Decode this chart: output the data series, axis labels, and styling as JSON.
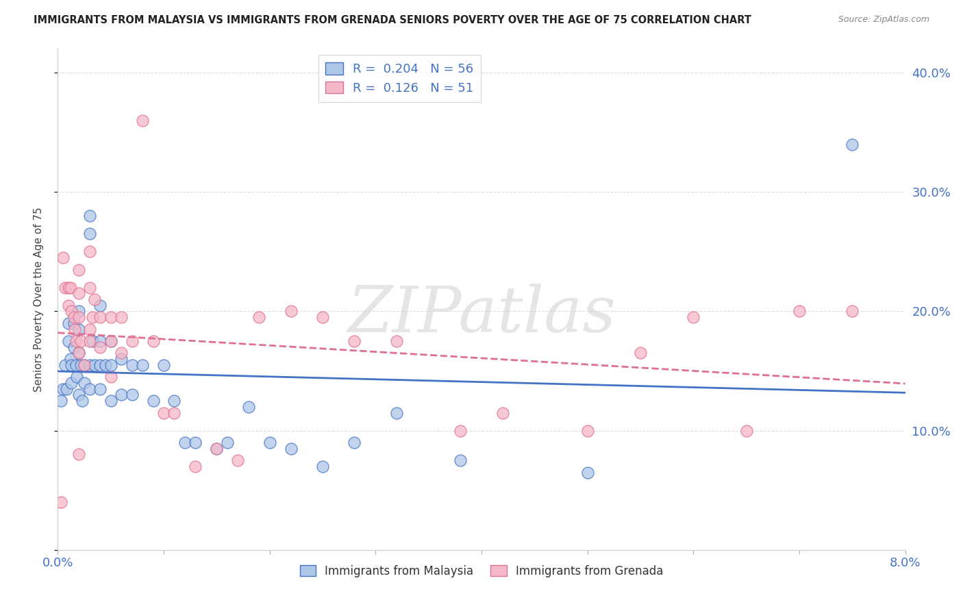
{
  "title": "IMMIGRANTS FROM MALAYSIA VS IMMIGRANTS FROM GRENADA SENIORS POVERTY OVER THE AGE OF 75 CORRELATION CHART",
  "source": "Source: ZipAtlas.com",
  "ylabel": "Seniors Poverty Over the Age of 75",
  "xlim": [
    0.0,
    0.08
  ],
  "ylim": [
    0.0,
    0.42
  ],
  "malaysia_R": "0.204",
  "malaysia_N": "56",
  "grenada_R": "0.126",
  "grenada_N": "51",
  "malaysia_color": "#aec6e8",
  "grenada_color": "#f5b8c8",
  "malaysia_line_color": "#4472c4",
  "grenada_line_color": "#e07090",
  "malaysia_x": [
    0.0003,
    0.0005,
    0.0007,
    0.0008,
    0.001,
    0.001,
    0.0012,
    0.0013,
    0.0013,
    0.0015,
    0.0015,
    0.0017,
    0.0018,
    0.002,
    0.002,
    0.002,
    0.002,
    0.0022,
    0.0023,
    0.0025,
    0.0025,
    0.003,
    0.003,
    0.003,
    0.003,
    0.0033,
    0.0035,
    0.004,
    0.004,
    0.004,
    0.004,
    0.0045,
    0.005,
    0.005,
    0.005,
    0.006,
    0.006,
    0.007,
    0.007,
    0.008,
    0.009,
    0.01,
    0.011,
    0.012,
    0.013,
    0.015,
    0.016,
    0.018,
    0.02,
    0.022,
    0.025,
    0.028,
    0.032,
    0.038,
    0.05,
    0.075
  ],
  "malaysia_y": [
    0.125,
    0.135,
    0.155,
    0.135,
    0.19,
    0.175,
    0.16,
    0.155,
    0.14,
    0.19,
    0.17,
    0.155,
    0.145,
    0.2,
    0.185,
    0.165,
    0.13,
    0.155,
    0.125,
    0.155,
    0.14,
    0.28,
    0.265,
    0.155,
    0.135,
    0.175,
    0.155,
    0.205,
    0.175,
    0.155,
    0.135,
    0.155,
    0.175,
    0.155,
    0.125,
    0.16,
    0.13,
    0.155,
    0.13,
    0.155,
    0.125,
    0.155,
    0.125,
    0.09,
    0.09,
    0.085,
    0.09,
    0.12,
    0.09,
    0.085,
    0.07,
    0.09,
    0.115,
    0.075,
    0.065,
    0.34
  ],
  "grenada_x": [
    0.0003,
    0.0005,
    0.0007,
    0.001,
    0.001,
    0.0012,
    0.0013,
    0.0015,
    0.0016,
    0.0017,
    0.002,
    0.002,
    0.002,
    0.002,
    0.0022,
    0.0025,
    0.003,
    0.003,
    0.003,
    0.0033,
    0.0035,
    0.004,
    0.004,
    0.005,
    0.005,
    0.006,
    0.006,
    0.007,
    0.008,
    0.009,
    0.01,
    0.011,
    0.013,
    0.015,
    0.017,
    0.019,
    0.022,
    0.025,
    0.028,
    0.032,
    0.038,
    0.042,
    0.05,
    0.055,
    0.06,
    0.065,
    0.07,
    0.075,
    0.003,
    0.005,
    0.002
  ],
  "grenada_y": [
    0.04,
    0.245,
    0.22,
    0.22,
    0.205,
    0.22,
    0.2,
    0.195,
    0.185,
    0.175,
    0.235,
    0.215,
    0.195,
    0.165,
    0.175,
    0.155,
    0.25,
    0.22,
    0.175,
    0.195,
    0.21,
    0.195,
    0.17,
    0.195,
    0.175,
    0.195,
    0.165,
    0.175,
    0.36,
    0.175,
    0.115,
    0.115,
    0.07,
    0.085,
    0.075,
    0.195,
    0.2,
    0.195,
    0.175,
    0.175,
    0.1,
    0.115,
    0.1,
    0.165,
    0.195,
    0.1,
    0.2,
    0.2,
    0.185,
    0.145,
    0.08
  ],
  "watermark": "ZIPatlas",
  "background_color": "#ffffff",
  "grid_color": "#dddddd"
}
